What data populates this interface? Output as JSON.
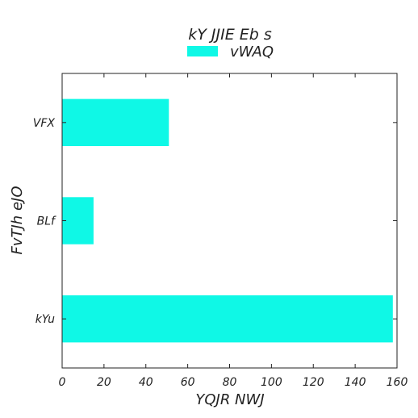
{
  "chart_data": {
    "type": "bar",
    "orientation": "horizontal",
    "title": "kY  JJIE Eb s",
    "xlabel": "YQJR NWJ",
    "ylabel": "FvTJh eJO",
    "categories": [
      "kYu",
      "BLf",
      "VFX"
    ],
    "series": [
      {
        "name": "vWAQ",
        "values": [
          158,
          15,
          51
        ],
        "color": "#0ff8e6"
      }
    ],
    "xlim": [
      0,
      160
    ],
    "xticks": [
      0,
      20,
      40,
      60,
      80,
      100,
      120,
      140,
      160
    ],
    "grid": false,
    "legend": "top-center"
  }
}
